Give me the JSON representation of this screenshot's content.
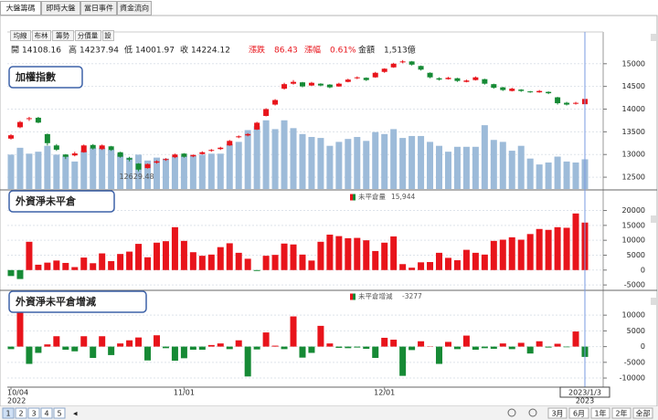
{
  "tabs": [
    "大盤籌碼",
    "即時大盤",
    "當日事件",
    "資金流向"
  ],
  "toolbar": [
    "均線",
    "布林",
    "籌勢",
    "分價量",
    "設"
  ],
  "pager": [
    "1",
    "2",
    "3",
    "4",
    "5"
  ],
  "ranges": [
    "3月",
    "6月",
    "1年",
    "2年",
    "全部"
  ],
  "chart_data": [
    {
      "type": "candlestick",
      "title": "加權指數",
      "info_labels": [
        "開",
        "高",
        "低",
        "收"
      ],
      "stats": [
        {
          "name": "漲跌",
          "text": "86.43"
        },
        {
          "name": "漲幅",
          "text": "0.61%"
        },
        {
          "name": "金額",
          "text": "1,513億"
        }
      ],
      "up_color": "#e8141b",
      "down_color": "#168a35",
      "categories": [
        "10/04",
        null,
        null,
        null,
        null,
        null,
        null,
        null,
        null,
        null,
        null,
        null,
        null,
        null,
        null,
        null,
        null,
        null,
        null,
        "11/01",
        null,
        null,
        null,
        null,
        null,
        null,
        null,
        null,
        null,
        null,
        null,
        null,
        null,
        null,
        null,
        null,
        null,
        null,
        null,
        null,
        null,
        "12/01",
        null,
        null,
        null,
        null,
        null,
        null,
        null,
        null,
        null,
        null,
        null,
        null,
        null,
        null,
        null,
        null,
        null,
        null,
        null,
        null,
        null,
        "2023/1/3"
      ],
      "sub_categories": [
        "2022",
        null,
        null,
        null,
        null,
        null,
        null,
        null,
        null,
        null,
        null,
        null,
        null,
        null,
        null,
        null,
        null,
        null,
        null,
        null,
        null,
        null,
        null,
        null,
        null,
        null,
        null,
        null,
        null,
        null,
        null,
        null,
        null,
        null,
        null,
        null,
        null,
        null,
        null,
        null,
        null,
        null,
        null,
        null,
        null,
        null,
        null,
        null,
        null,
        null,
        null,
        null,
        null,
        null,
        null,
        null,
        null,
        null,
        null,
        null,
        null,
        null,
        null,
        "2023"
      ],
      "candles": [
        [
          13350,
          13450,
          13330,
          13424
        ],
        [
          13600,
          13740,
          13580,
          13716
        ],
        [
          13780,
          13830,
          13740,
          13800
        ],
        [
          13810,
          13830,
          13690,
          13703
        ],
        [
          13450,
          13460,
          13200,
          13250
        ],
        [
          13200,
          13230,
          13080,
          13106
        ],
        [
          13000,
          13010,
          12900,
          12950
        ],
        [
          12980,
          13060,
          12960,
          13024
        ],
        [
          13050,
          13220,
          13040,
          13200
        ],
        [
          13210,
          13230,
          13110,
          13133
        ],
        [
          13120,
          13220,
          13100,
          13200
        ],
        [
          13180,
          13190,
          13080,
          13100
        ],
        [
          13050,
          13060,
          12930,
          12950
        ],
        [
          12920,
          12950,
          12850,
          12888
        ],
        [
          12800,
          12810,
          12629.48,
          12667
        ],
        [
          12700,
          12800,
          12690,
          12790
        ],
        [
          12820,
          12870,
          12800,
          12850
        ],
        [
          12880,
          12920,
          12860,
          12900
        ],
        [
          12940,
          13020,
          12920,
          13000
        ],
        [
          13020,
          13030,
          12930,
          12950
        ],
        [
          12960,
          13000,
          12940,
          12990
        ],
        [
          13010,
          13070,
          13000,
          13050
        ],
        [
          13080,
          13120,
          13060,
          13100
        ],
        [
          13120,
          13170,
          13100,
          13150
        ],
        [
          13200,
          13320,
          13190,
          13300
        ],
        [
          13380,
          13420,
          13360,
          13400
        ],
        [
          13420,
          13470,
          13400,
          13450
        ],
        [
          13550,
          13720,
          13540,
          13700
        ],
        [
          13850,
          14020,
          13840,
          14000
        ],
        [
          14100,
          14220,
          14080,
          14200
        ],
        [
          14450,
          14580,
          14430,
          14550
        ],
        [
          14560,
          14640,
          14540,
          14600
        ],
        [
          14590,
          14600,
          14480,
          14500
        ],
        [
          14520,
          14600,
          14510,
          14580
        ],
        [
          14560,
          14570,
          14500,
          14520
        ],
        [
          14540,
          14550,
          14460,
          14480
        ],
        [
          14500,
          14580,
          14490,
          14560
        ],
        [
          14600,
          14670,
          14590,
          14650
        ],
        [
          14680,
          14720,
          14660,
          14700
        ],
        [
          14690,
          14700,
          14620,
          14640
        ],
        [
          14700,
          14820,
          14690,
          14800
        ],
        [
          14820,
          14900,
          14800,
          14890
        ],
        [
          14920,
          15020,
          14910,
          15000
        ],
        [
          15040,
          15080,
          15010,
          15050
        ],
        [
          15050,
          15060,
          14960,
          14980
        ],
        [
          14950,
          14960,
          14850,
          14870
        ],
        [
          14800,
          14810,
          14680,
          14700
        ],
        [
          14680,
          14700,
          14630,
          14650
        ],
        [
          14660,
          14710,
          14650,
          14690
        ],
        [
          14680,
          14690,
          14600,
          14620
        ],
        [
          14600,
          14650,
          14590,
          14630
        ],
        [
          14640,
          14720,
          14630,
          14700
        ],
        [
          14660,
          14670,
          14540,
          14560
        ],
        [
          14550,
          14560,
          14450,
          14470
        ],
        [
          14480,
          14490,
          14400,
          14420
        ],
        [
          14400,
          14470,
          14390,
          14450
        ],
        [
          14430,
          14440,
          14380,
          14400
        ],
        [
          14390,
          14400,
          14360,
          14380
        ],
        [
          14370,
          14420,
          14360,
          14400
        ],
        [
          14380,
          14390,
          14330,
          14350
        ],
        [
          14260,
          14270,
          14100,
          14130
        ],
        [
          14140,
          14160,
          14080,
          14100
        ],
        [
          14120,
          14160,
          14100,
          14138
        ],
        [
          14108.16,
          14237.94,
          14001.97,
          14224.12
        ]
      ],
      "volume": {
        "axis": "y2",
        "color": "#9dbbd9",
        "values": [
          1750,
          2100,
          1800,
          1900,
          2200,
          1750,
          1700,
          1400,
          1950,
          2100,
          2100,
          2000,
          1800,
          1600,
          1750,
          1450,
          1600,
          1550,
          1650,
          1700,
          1700,
          1750,
          1800,
          1800,
          2300,
          2400,
          3000,
          3200,
          3500,
          3050,
          3500,
          3100,
          2800,
          2650,
          2600,
          2200,
          2400,
          2550,
          2650,
          2450,
          2900,
          2800,
          3050,
          2600,
          2700,
          2700,
          2400,
          2200,
          1900,
          2150,
          2150,
          2150,
          3250,
          2500,
          2400,
          1950,
          2200,
          1550,
          1250,
          1350,
          1650,
          1400,
          1350,
          1513
        ]
      },
      "ylim": [
        12240,
        15700
      ],
      "yticks": [
        12500,
        13000,
        13500,
        14000,
        14500,
        15000
      ],
      "y2lim": [
        0,
        8000
      ],
      "grid": true
    },
    {
      "type": "bar",
      "title": "外資淨未平倉",
      "up_color": "#e8141b",
      "down_color": "#168a35",
      "series": [
        {
          "name": "未平倉量",
          "values": [
            -2000,
            -3000,
            9500,
            1800,
            2500,
            3200,
            2400,
            1000,
            4200,
            2300,
            5600,
            3000,
            5400,
            6200,
            8800,
            4300,
            9200,
            9700,
            14400,
            9800,
            6000,
            4800,
            5200,
            7700,
            9000,
            5800,
            3800,
            -300,
            4800,
            5100,
            8900,
            8600,
            5200,
            3200,
            9500,
            11900,
            11400,
            10700,
            10800,
            10000,
            6400,
            9200,
            11300,
            2000,
            800,
            2600,
            2700,
            5800,
            4100,
            3300,
            6800,
            5800,
            5200,
            9800,
            10200,
            11000,
            10200,
            12100,
            13800,
            13500,
            14400,
            14200,
            19000,
            15944
          ],
          "value_labels": [
            null,
            null,
            null,
            null,
            null,
            null,
            null,
            null,
            null,
            null,
            null,
            null,
            null,
            null,
            null,
            null,
            null,
            null,
            null,
            null,
            null,
            null,
            null,
            null,
            null,
            null,
            null,
            null,
            null,
            null,
            null,
            null,
            null,
            null,
            null,
            null,
            null,
            null,
            null,
            null,
            null,
            null,
            null,
            null,
            null,
            null,
            null,
            null,
            null,
            null,
            null,
            null,
            null,
            null,
            null,
            null,
            null,
            null,
            null,
            null,
            null,
            null,
            null,
            "15,944"
          ]
        }
      ],
      "ylim": [
        -6500,
        26300
      ],
      "yticks": [
        -5000,
        0,
        5000,
        10000,
        15000,
        20000
      ],
      "grid": true
    },
    {
      "type": "bar",
      "title": "外資淨未平倉增減",
      "up_color": "#e8141b",
      "down_color": "#168a35",
      "series": [
        {
          "name": "未平倉增減",
          "values": [
            -800,
            11000,
            -5500,
            -2000,
            700,
            3300,
            -1000,
            -1500,
            3300,
            -3600,
            3300,
            -2700,
            1000,
            2000,
            2900,
            -4400,
            3600,
            -500,
            -4500,
            -3700,
            -1000,
            -1000,
            500,
            1000,
            -800,
            2000,
            -9500,
            -900,
            4500,
            300,
            -800,
            9600,
            -3500,
            -2000,
            6600,
            1000,
            -400,
            -500,
            -300,
            -700,
            -3600,
            2800,
            2200,
            -9300,
            -1100,
            1700,
            100,
            -5500,
            1500,
            -800,
            3500,
            -1000,
            -500,
            -700,
            1000,
            -800,
            1200,
            -2200,
            1700,
            -300,
            900,
            -200,
            4800,
            -3277
          ]
        }
      ],
      "ylim": [
        -12600,
        17600
      ],
      "yticks": [
        -10000,
        -5000,
        0,
        5000,
        10000
      ],
      "grid": true
    }
  ]
}
